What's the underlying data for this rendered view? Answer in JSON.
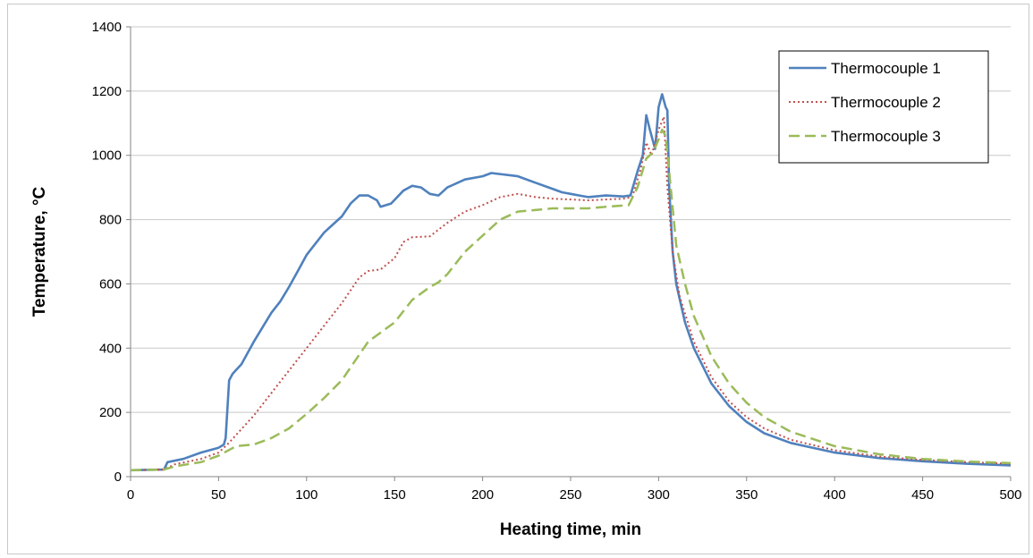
{
  "chart_data": {
    "type": "line",
    "title": "",
    "xlabel": "Heating time, min",
    "ylabel": "Temperature, °C",
    "xlim": [
      0,
      500
    ],
    "ylim": [
      0,
      1400
    ],
    "xticks": [
      0,
      50,
      100,
      150,
      200,
      250,
      300,
      350,
      400,
      450,
      500
    ],
    "yticks": [
      0,
      200,
      400,
      600,
      800,
      1000,
      1200,
      1400
    ],
    "grid": "horizontal",
    "legend": "top-right",
    "series": [
      {
        "name": "Thermocouple 1",
        "color": "#4f81bd",
        "style": "solid",
        "points": [
          [
            0,
            20
          ],
          [
            19,
            22
          ],
          [
            21,
            45
          ],
          [
            30,
            55
          ],
          [
            40,
            75
          ],
          [
            50,
            90
          ],
          [
            53,
            100
          ],
          [
            54,
            120
          ],
          [
            56,
            300
          ],
          [
            58,
            320
          ],
          [
            63,
            350
          ],
          [
            70,
            420
          ],
          [
            80,
            510
          ],
          [
            85,
            545
          ],
          [
            90,
            590
          ],
          [
            95,
            640
          ],
          [
            100,
            690
          ],
          [
            110,
            760
          ],
          [
            115,
            785
          ],
          [
            120,
            810
          ],
          [
            125,
            850
          ],
          [
            130,
            875
          ],
          [
            135,
            875
          ],
          [
            140,
            860
          ],
          [
            142,
            840
          ],
          [
            148,
            850
          ],
          [
            155,
            890
          ],
          [
            160,
            905
          ],
          [
            165,
            900
          ],
          [
            170,
            880
          ],
          [
            175,
            875
          ],
          [
            180,
            900
          ],
          [
            190,
            925
          ],
          [
            200,
            935
          ],
          [
            205,
            945
          ],
          [
            220,
            935
          ],
          [
            230,
            915
          ],
          [
            240,
            895
          ],
          [
            245,
            885
          ],
          [
            255,
            875
          ],
          [
            260,
            870
          ],
          [
            270,
            875
          ],
          [
            280,
            872
          ],
          [
            284,
            875
          ],
          [
            288,
            950
          ],
          [
            291,
            1000
          ],
          [
            293,
            1125
          ],
          [
            295,
            1080
          ],
          [
            297,
            1040
          ],
          [
            298,
            1020
          ],
          [
            300,
            1150
          ],
          [
            302,
            1190
          ],
          [
            304,
            1150
          ],
          [
            305,
            1140
          ],
          [
            306,
            900
          ],
          [
            308,
            700
          ],
          [
            310,
            600
          ],
          [
            315,
            480
          ],
          [
            320,
            400
          ],
          [
            330,
            290
          ],
          [
            340,
            220
          ],
          [
            350,
            170
          ],
          [
            360,
            135
          ],
          [
            375,
            105
          ],
          [
            400,
            75
          ],
          [
            425,
            58
          ],
          [
            450,
            48
          ],
          [
            475,
            40
          ],
          [
            500,
            35
          ]
        ]
      },
      {
        "name": "Thermocouple 2",
        "color": "#c0504d",
        "style": "dotted",
        "points": [
          [
            0,
            20
          ],
          [
            19,
            22
          ],
          [
            25,
            38
          ],
          [
            40,
            55
          ],
          [
            50,
            75
          ],
          [
            55,
            100
          ],
          [
            60,
            130
          ],
          [
            70,
            190
          ],
          [
            80,
            260
          ],
          [
            90,
            330
          ],
          [
            100,
            400
          ],
          [
            110,
            470
          ],
          [
            120,
            540
          ],
          [
            130,
            620
          ],
          [
            135,
            640
          ],
          [
            142,
            645
          ],
          [
            150,
            680
          ],
          [
            155,
            730
          ],
          [
            160,
            745
          ],
          [
            170,
            748
          ],
          [
            180,
            790
          ],
          [
            190,
            825
          ],
          [
            200,
            845
          ],
          [
            210,
            870
          ],
          [
            220,
            880
          ],
          [
            230,
            870
          ],
          [
            240,
            865
          ],
          [
            260,
            860
          ],
          [
            280,
            865
          ],
          [
            285,
            870
          ],
          [
            290,
            960
          ],
          [
            293,
            1040
          ],
          [
            296,
            1000
          ],
          [
            300,
            1080
          ],
          [
            303,
            1120
          ],
          [
            305,
            900
          ],
          [
            308,
            700
          ],
          [
            312,
            560
          ],
          [
            320,
            420
          ],
          [
            330,
            310
          ],
          [
            340,
            235
          ],
          [
            350,
            185
          ],
          [
            360,
            150
          ],
          [
            375,
            115
          ],
          [
            400,
            82
          ],
          [
            425,
            63
          ],
          [
            450,
            52
          ],
          [
            475,
            45
          ],
          [
            500,
            40
          ]
        ]
      },
      {
        "name": "Thermocouple 3",
        "color": "#9bbb59",
        "style": "dashed",
        "points": [
          [
            0,
            20
          ],
          [
            19,
            22
          ],
          [
            25,
            32
          ],
          [
            40,
            45
          ],
          [
            50,
            65
          ],
          [
            60,
            95
          ],
          [
            70,
            100
          ],
          [
            80,
            120
          ],
          [
            90,
            150
          ],
          [
            100,
            195
          ],
          [
            110,
            245
          ],
          [
            120,
            300
          ],
          [
            130,
            380
          ],
          [
            135,
            420
          ],
          [
            140,
            440
          ],
          [
            150,
            480
          ],
          [
            160,
            550
          ],
          [
            170,
            590
          ],
          [
            175,
            605
          ],
          [
            180,
            630
          ],
          [
            190,
            700
          ],
          [
            200,
            750
          ],
          [
            210,
            800
          ],
          [
            220,
            825
          ],
          [
            240,
            835
          ],
          [
            260,
            835
          ],
          [
            270,
            840
          ],
          [
            283,
            845
          ],
          [
            288,
            900
          ],
          [
            293,
            990
          ],
          [
            297,
            1010
          ],
          [
            300,
            1050
          ],
          [
            302,
            1080
          ],
          [
            304,
            1060
          ],
          [
            306,
            950
          ],
          [
            310,
            720
          ],
          [
            315,
            600
          ],
          [
            320,
            500
          ],
          [
            330,
            375
          ],
          [
            340,
            290
          ],
          [
            350,
            230
          ],
          [
            360,
            185
          ],
          [
            375,
            140
          ],
          [
            400,
            95
          ],
          [
            425,
            70
          ],
          [
            450,
            55
          ],
          [
            475,
            47
          ],
          [
            500,
            42
          ]
        ]
      }
    ]
  }
}
